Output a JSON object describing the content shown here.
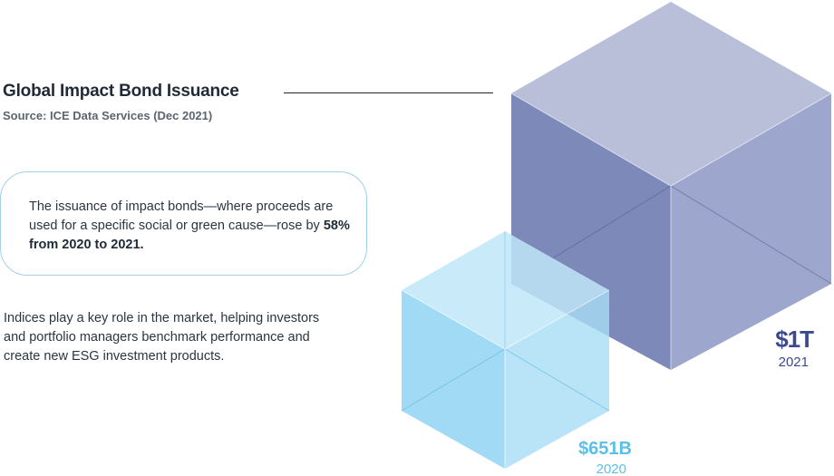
{
  "header": {
    "title": "Global Impact Bond Issuance",
    "source": "Source: ICE Data Services (Dec 2021)"
  },
  "callout": {
    "text_before": "The issuance of impact bonds—where proceeds are used for a specific social or green cause—rose by ",
    "text_bold": "58% from 2020 to 2021."
  },
  "paragraph": "Indices play a key role in the market, helping investors and portfolio managers benchmark performance and create new ESG investment products.",
  "colors": {
    "large_cube": "#6b78ad",
    "small_cube": "#7ccbee",
    "large_label": "#3c4a8c",
    "small_label": "#5bbfe8"
  },
  "chart_data": {
    "type": "bar",
    "categories": [
      "2020",
      "2021"
    ],
    "values": [
      651,
      1000
    ],
    "value_labels": [
      "$651B",
      "$1T"
    ],
    "unit": "USD billions"
  }
}
